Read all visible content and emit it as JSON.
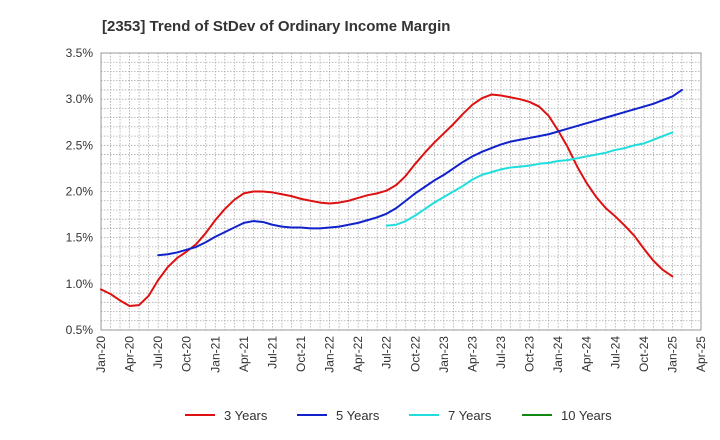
{
  "chart_data": {
    "type": "line",
    "title": "[2353]  Trend of StDev of Ordinary Income Margin",
    "xlabel": "",
    "ylabel": "",
    "x_ticks": [
      "Jan-20",
      "Apr-20",
      "Jul-20",
      "Oct-20",
      "Jan-21",
      "Apr-21",
      "Jul-21",
      "Oct-21",
      "Jan-22",
      "Apr-22",
      "Jul-22",
      "Oct-22",
      "Jan-23",
      "Apr-23",
      "Jul-23",
      "Oct-23",
      "Jan-24",
      "Apr-24",
      "Jul-24",
      "Oct-24",
      "Jan-25",
      "Apr-25"
    ],
    "y_ticks": [
      "0.5%",
      "1.0%",
      "1.5%",
      "2.0%",
      "2.5%",
      "3.0%",
      "3.5%"
    ],
    "ylim": [
      0.5,
      3.5
    ],
    "x_range_months": [
      "2020-01",
      "2025-04"
    ],
    "grid": true,
    "legend_position": "bottom",
    "series": [
      {
        "name": "3 Years",
        "color": "#dd1111",
        "points": [
          [
            "2020-01",
            0.94
          ],
          [
            "2020-02",
            0.89
          ],
          [
            "2020-03",
            0.82
          ],
          [
            "2020-04",
            0.76
          ],
          [
            "2020-05",
            0.77
          ],
          [
            "2020-06",
            0.87
          ],
          [
            "2020-07",
            1.04
          ],
          [
            "2020-08",
            1.18
          ],
          [
            "2020-09",
            1.28
          ],
          [
            "2020-10",
            1.35
          ],
          [
            "2020-11",
            1.43
          ],
          [
            "2020-12",
            1.55
          ],
          [
            "2021-01",
            1.69
          ],
          [
            "2021-02",
            1.81
          ],
          [
            "2021-03",
            1.91
          ],
          [
            "2021-04",
            1.98
          ],
          [
            "2021-05",
            2.0
          ],
          [
            "2021-06",
            2.0
          ],
          [
            "2021-07",
            1.99
          ],
          [
            "2021-08",
            1.97
          ],
          [
            "2021-09",
            1.95
          ],
          [
            "2021-10",
            1.92
          ],
          [
            "2021-11",
            1.9
          ],
          [
            "2021-12",
            1.88
          ],
          [
            "2022-01",
            1.87
          ],
          [
            "2022-02",
            1.88
          ],
          [
            "2022-03",
            1.9
          ],
          [
            "2022-04",
            1.93
          ],
          [
            "2022-05",
            1.96
          ],
          [
            "2022-06",
            1.98
          ],
          [
            "2022-07",
            2.01
          ],
          [
            "2022-08",
            2.07
          ],
          [
            "2022-09",
            2.17
          ],
          [
            "2022-10",
            2.3
          ],
          [
            "2022-11",
            2.42
          ],
          [
            "2022-12",
            2.53
          ],
          [
            "2023-01",
            2.63
          ],
          [
            "2023-02",
            2.73
          ],
          [
            "2023-03",
            2.84
          ],
          [
            "2023-04",
            2.94
          ],
          [
            "2023-05",
            3.01
          ],
          [
            "2023-06",
            3.05
          ],
          [
            "2023-07",
            3.04
          ],
          [
            "2023-08",
            3.02
          ],
          [
            "2023-09",
            3.0
          ],
          [
            "2023-10",
            2.97
          ],
          [
            "2023-11",
            2.92
          ],
          [
            "2023-12",
            2.82
          ],
          [
            "2024-01",
            2.66
          ],
          [
            "2024-02",
            2.48
          ],
          [
            "2024-03",
            2.27
          ],
          [
            "2024-04",
            2.09
          ],
          [
            "2024-05",
            1.94
          ],
          [
            "2024-06",
            1.82
          ],
          [
            "2024-07",
            1.73
          ],
          [
            "2024-08",
            1.63
          ],
          [
            "2024-09",
            1.52
          ],
          [
            "2024-10",
            1.38
          ],
          [
            "2024-11",
            1.25
          ],
          [
            "2024-12",
            1.15
          ],
          [
            "2025-01",
            1.08
          ]
        ]
      },
      {
        "name": "5 Years",
        "color": "#1122cc",
        "points": [
          [
            "2020-07",
            1.31
          ],
          [
            "2020-08",
            1.32
          ],
          [
            "2020-09",
            1.34
          ],
          [
            "2020-10",
            1.37
          ],
          [
            "2020-11",
            1.4
          ],
          [
            "2020-12",
            1.45
          ],
          [
            "2021-01",
            1.51
          ],
          [
            "2021-02",
            1.56
          ],
          [
            "2021-03",
            1.61
          ],
          [
            "2021-04",
            1.66
          ],
          [
            "2021-05",
            1.68
          ],
          [
            "2021-06",
            1.67
          ],
          [
            "2021-07",
            1.64
          ],
          [
            "2021-08",
            1.62
          ],
          [
            "2021-09",
            1.61
          ],
          [
            "2021-10",
            1.61
          ],
          [
            "2021-11",
            1.6
          ],
          [
            "2021-12",
            1.6
          ],
          [
            "2022-01",
            1.61
          ],
          [
            "2022-02",
            1.62
          ],
          [
            "2022-03",
            1.64
          ],
          [
            "2022-04",
            1.66
          ],
          [
            "2022-05",
            1.69
          ],
          [
            "2022-06",
            1.72
          ],
          [
            "2022-07",
            1.76
          ],
          [
            "2022-08",
            1.82
          ],
          [
            "2022-09",
            1.9
          ],
          [
            "2022-10",
            1.98
          ],
          [
            "2022-11",
            2.05
          ],
          [
            "2022-12",
            2.12
          ],
          [
            "2023-01",
            2.18
          ],
          [
            "2023-02",
            2.25
          ],
          [
            "2023-03",
            2.32
          ],
          [
            "2023-04",
            2.38
          ],
          [
            "2023-05",
            2.43
          ],
          [
            "2023-06",
            2.47
          ],
          [
            "2023-07",
            2.51
          ],
          [
            "2023-08",
            2.54
          ],
          [
            "2023-09",
            2.56
          ],
          [
            "2023-10",
            2.58
          ],
          [
            "2023-11",
            2.6
          ],
          [
            "2023-12",
            2.62
          ],
          [
            "2024-01",
            2.65
          ],
          [
            "2024-02",
            2.68
          ],
          [
            "2024-03",
            2.71
          ],
          [
            "2024-04",
            2.74
          ],
          [
            "2024-05",
            2.77
          ],
          [
            "2024-06",
            2.8
          ],
          [
            "2024-07",
            2.83
          ],
          [
            "2024-08",
            2.86
          ],
          [
            "2024-09",
            2.89
          ],
          [
            "2024-10",
            2.92
          ],
          [
            "2024-11",
            2.95
          ],
          [
            "2024-12",
            2.99
          ],
          [
            "2025-01",
            3.03
          ],
          [
            "2025-02",
            3.1
          ]
        ]
      },
      {
        "name": "7 Years",
        "color": "#22dddd",
        "points": [
          [
            "2022-07",
            1.63
          ],
          [
            "2022-08",
            1.64
          ],
          [
            "2022-09",
            1.68
          ],
          [
            "2022-10",
            1.74
          ],
          [
            "2022-11",
            1.81
          ],
          [
            "2022-12",
            1.88
          ],
          [
            "2023-01",
            1.94
          ],
          [
            "2023-02",
            2.0
          ],
          [
            "2023-03",
            2.06
          ],
          [
            "2023-04",
            2.13
          ],
          [
            "2023-05",
            2.18
          ],
          [
            "2023-06",
            2.21
          ],
          [
            "2023-07",
            2.24
          ],
          [
            "2023-08",
            2.26
          ],
          [
            "2023-09",
            2.27
          ],
          [
            "2023-10",
            2.28
          ],
          [
            "2023-11",
            2.3
          ],
          [
            "2023-12",
            2.31
          ],
          [
            "2024-01",
            2.33
          ],
          [
            "2024-02",
            2.34
          ],
          [
            "2024-03",
            2.36
          ],
          [
            "2024-04",
            2.38
          ],
          [
            "2024-05",
            2.4
          ],
          [
            "2024-06",
            2.42
          ],
          [
            "2024-07",
            2.45
          ],
          [
            "2024-08",
            2.47
          ],
          [
            "2024-09",
            2.5
          ],
          [
            "2024-10",
            2.52
          ],
          [
            "2024-11",
            2.56
          ],
          [
            "2024-12",
            2.6
          ],
          [
            "2025-01",
            2.64
          ]
        ]
      },
      {
        "name": "10 Years",
        "color": "#118811",
        "points": []
      }
    ]
  }
}
